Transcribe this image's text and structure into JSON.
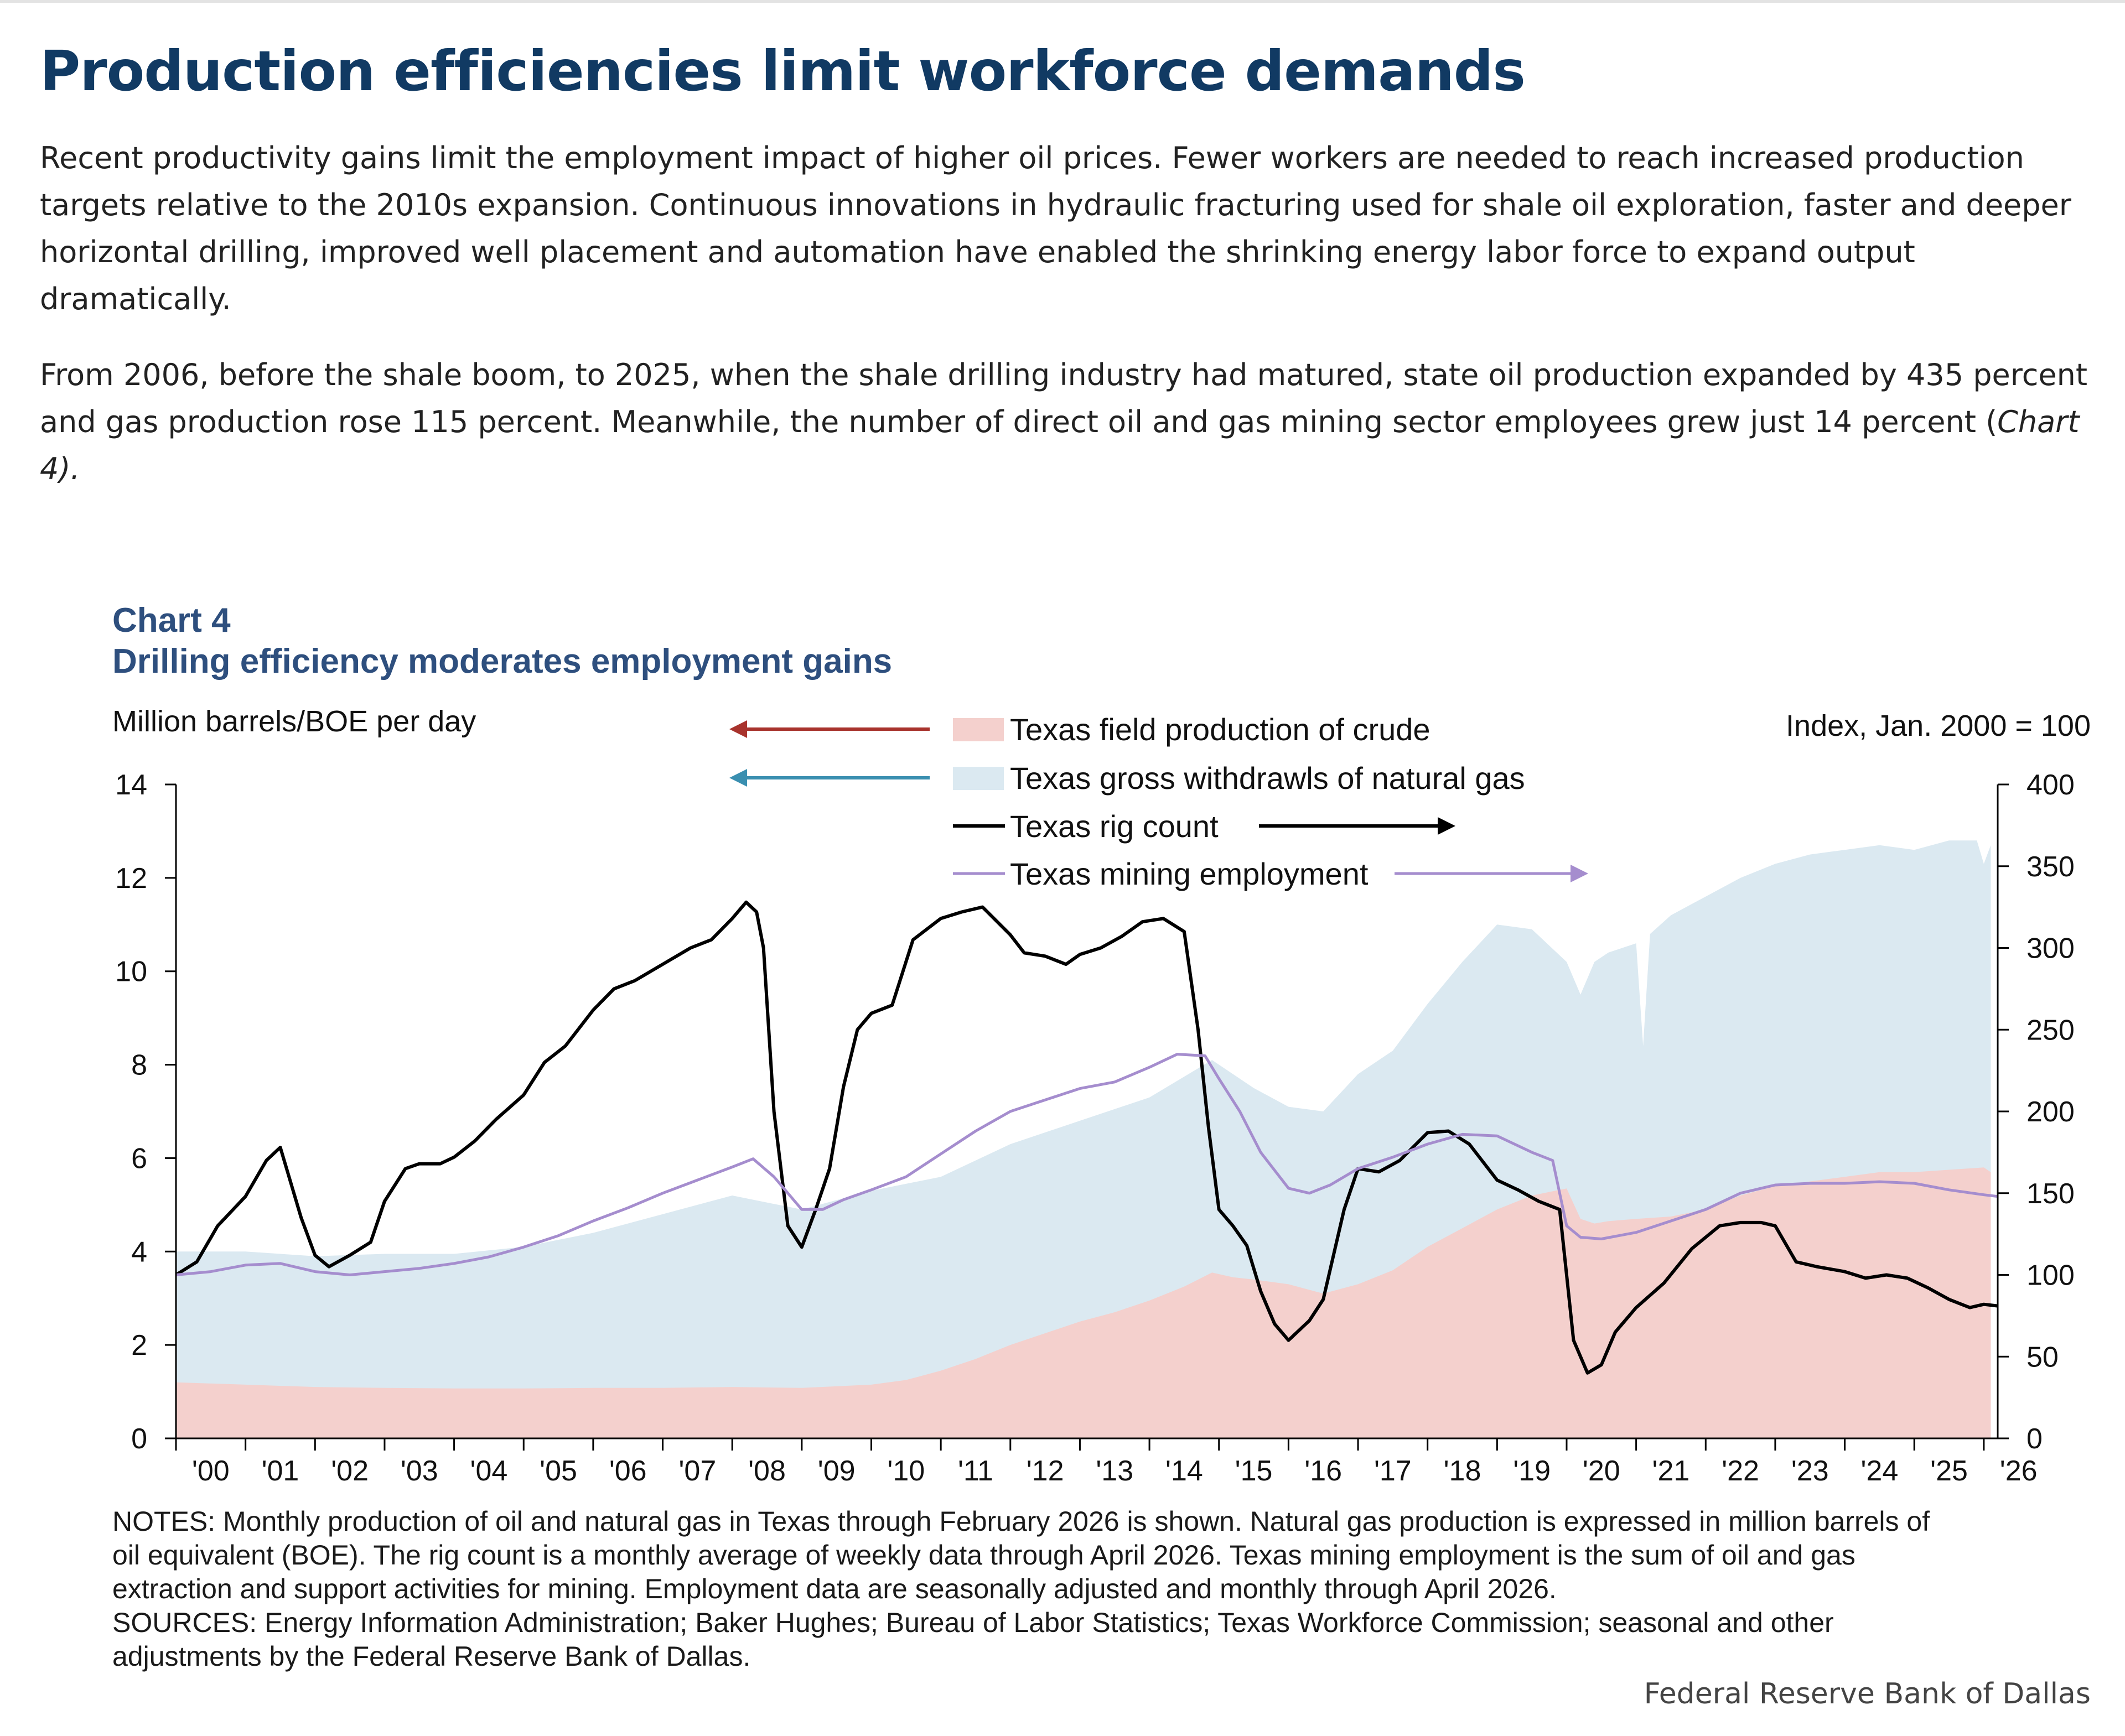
{
  "article": {
    "headline": "Production efficiencies limit workforce demands",
    "paragraph1_lines": [
      "Recent productivity gains limit the employment impact of higher oil prices. Fewer workers are needed to reach increased production",
      "targets relative to the 2010s expansion. Continuous innovations in hydraulic fracturing used for shale oil exploration, faster and deeper",
      "horizontal drilling, improved well placement and automation have enabled the shrinking energy labor force to expand output",
      "dramatically."
    ],
    "paragraph2_lines": [
      "From 2006, before the shale boom, to 2025, when the shale drilling industry had matured, state oil production expanded by 435 percent",
      "and gas production rose 115 percent. Meanwhile, the number of direct oil and gas mining sector employees grew just 14 percent (",
      "4)."
    ],
    "paragraph2_ref_italic": "Chart"
  },
  "chart_data": {
    "type": "area",
    "title": "Chart 4",
    "subtitle": "Drilling efficiency moderates employment gains",
    "ylabel_left": "Million barrels/BOE per day",
    "ylabel_right": "Index, Jan. 2000 = 100",
    "ylim_left": [
      0,
      14
    ],
    "ylim_right": [
      0,
      400
    ],
    "yticks_left": [
      "0",
      "2",
      "4",
      "6",
      "8",
      "10",
      "12",
      "14"
    ],
    "yticks_right": [
      "0",
      "50",
      "100",
      "150",
      "200",
      "250",
      "300",
      "350",
      "400"
    ],
    "xlim": [
      2000.0,
      2026.2
    ],
    "xticks": [
      "'00",
      "'01",
      "'02",
      "'03",
      "'04",
      "'05",
      "'06",
      "'07",
      "'08",
      "'09",
      "'10",
      "'11",
      "'12",
      "'13",
      "'14",
      "'15",
      "'16",
      "'17",
      "'18",
      "'19",
      "'20",
      "'21",
      "'22",
      "'23",
      "'24",
      "'25",
      "'26"
    ],
    "grid": false,
    "legend_position": "top-center",
    "series": [
      {
        "name": "Texas field production of crude",
        "axis": "left",
        "style": "area",
        "color": "#f4d0cd",
        "arrow_color": "#a8332d",
        "x": [
          2000.0,
          2001.0,
          2002.0,
          2003.0,
          2004.0,
          2005.0,
          2006.0,
          2007.0,
          2008.0,
          2009.0,
          2010.0,
          2010.5,
          2011.0,
          2011.5,
          2012.0,
          2012.5,
          2013.0,
          2013.5,
          2014.0,
          2014.5,
          2014.9,
          2015.2,
          2015.5,
          2016.0,
          2016.5,
          2017.0,
          2017.5,
          2018.0,
          2018.5,
          2019.0,
          2019.5,
          2020.0,
          2020.2,
          2020.4,
          2020.6,
          2021.0,
          2021.5,
          2022.0,
          2022.5,
          2023.0,
          2023.5,
          2024.0,
          2024.5,
          2025.0,
          2025.5,
          2026.0,
          2026.1
        ],
        "values": [
          1.2,
          1.15,
          1.1,
          1.08,
          1.07,
          1.07,
          1.08,
          1.08,
          1.1,
          1.08,
          1.15,
          1.25,
          1.45,
          1.7,
          2.0,
          2.25,
          2.5,
          2.7,
          2.95,
          3.25,
          3.55,
          3.45,
          3.4,
          3.3,
          3.1,
          3.3,
          3.6,
          4.1,
          4.5,
          4.9,
          5.2,
          5.35,
          4.7,
          4.6,
          4.65,
          4.7,
          4.75,
          4.9,
          5.2,
          5.4,
          5.5,
          5.6,
          5.7,
          5.7,
          5.75,
          5.8,
          5.7
        ]
      },
      {
        "name": "Texas gross withdrawls of natural gas",
        "axis": "left",
        "style": "area",
        "color": "#dbe9f1",
        "arrow_color": "#3a8fb0",
        "x": [
          2000.0,
          2001.0,
          2002.0,
          2003.0,
          2004.0,
          2005.0,
          2006.0,
          2007.0,
          2008.0,
          2009.0,
          2010.0,
          2011.0,
          2012.0,
          2013.0,
          2014.0,
          2014.9,
          2015.5,
          2016.0,
          2016.5,
          2017.0,
          2017.5,
          2018.0,
          2018.5,
          2019.0,
          2019.5,
          2020.0,
          2020.2,
          2020.4,
          2020.6,
          2021.0,
          2021.1,
          2021.2,
          2021.5,
          2022.0,
          2022.5,
          2023.0,
          2023.5,
          2024.0,
          2024.5,
          2025.0,
          2025.5,
          2025.9,
          2026.0,
          2026.1
        ],
        "values": [
          4.0,
          4.0,
          3.9,
          3.95,
          3.95,
          4.1,
          4.4,
          4.8,
          5.2,
          4.9,
          5.3,
          5.6,
          6.3,
          6.8,
          7.3,
          8.1,
          7.5,
          7.1,
          7.0,
          7.8,
          8.3,
          9.3,
          10.2,
          11.0,
          10.9,
          10.2,
          9.5,
          10.2,
          10.4,
          10.6,
          8.4,
          10.8,
          11.2,
          11.6,
          12.0,
          12.3,
          12.5,
          12.6,
          12.7,
          12.6,
          12.8,
          12.8,
          12.3,
          12.7
        ]
      },
      {
        "name": "Texas rig count",
        "axis": "right",
        "style": "line",
        "color": "#000000",
        "x": [
          2000.0,
          2000.3,
          2000.6,
          2001.0,
          2001.3,
          2001.5,
          2001.8,
          2002.0,
          2002.2,
          2002.5,
          2002.8,
          2003.0,
          2003.3,
          2003.5,
          2003.8,
          2004.0,
          2004.3,
          2004.6,
          2005.0,
          2005.3,
          2005.6,
          2006.0,
          2006.3,
          2006.6,
          2007.0,
          2007.4,
          2007.7,
          2008.0,
          2008.2,
          2008.35,
          2008.45,
          2008.6,
          2008.8,
          2009.0,
          2009.2,
          2009.4,
          2009.6,
          2009.8,
          2010.0,
          2010.3,
          2010.6,
          2011.0,
          2011.3,
          2011.6,
          2012.0,
          2012.2,
          2012.5,
          2012.8,
          2013.0,
          2013.3,
          2013.6,
          2013.9,
          2014.2,
          2014.5,
          2014.7,
          2014.85,
          2015.0,
          2015.2,
          2015.4,
          2015.6,
          2015.8,
          2016.0,
          2016.3,
          2016.5,
          2016.8,
          2017.0,
          2017.3,
          2017.6,
          2018.0,
          2018.3,
          2018.6,
          2019.0,
          2019.3,
          2019.6,
          2019.9,
          2020.1,
          2020.3,
          2020.5,
          2020.7,
          2021.0,
          2021.4,
          2021.8,
          2022.2,
          2022.5,
          2022.8,
          2023.0,
          2023.3,
          2023.6,
          2024.0,
          2024.3,
          2024.6,
          2024.9,
          2025.2,
          2025.5,
          2025.8,
          2026.0,
          2026.2
        ],
        "values": [
          100,
          108,
          130,
          148,
          170,
          178,
          135,
          112,
          105,
          112,
          120,
          145,
          165,
          168,
          168,
          172,
          182,
          195,
          210,
          230,
          240,
          262,
          275,
          280,
          290,
          300,
          305,
          318,
          328,
          322,
          300,
          200,
          130,
          117,
          140,
          165,
          215,
          250,
          260,
          265,
          305,
          318,
          322,
          325,
          308,
          297,
          295,
          290,
          296,
          300,
          307,
          316,
          318,
          310,
          250,
          190,
          140,
          130,
          118,
          90,
          70,
          60,
          72,
          85,
          140,
          165,
          163,
          170,
          187,
          188,
          180,
          158,
          152,
          145,
          140,
          60,
          40,
          45,
          65,
          80,
          95,
          116,
          130,
          132,
          132,
          130,
          108,
          105,
          102,
          98,
          100,
          98,
          92,
          85,
          80,
          82,
          81
        ]
      },
      {
        "name": "Texas mining employment",
        "axis": "right",
        "style": "line",
        "color": "#a58dce",
        "x": [
          2000.0,
          2000.5,
          2001.0,
          2001.5,
          2002.0,
          2002.5,
          2003.0,
          2003.5,
          2004.0,
          2004.5,
          2005.0,
          2005.5,
          2006.0,
          2006.5,
          2007.0,
          2007.5,
          2008.0,
          2008.3,
          2008.6,
          2009.0,
          2009.3,
          2009.6,
          2010.0,
          2010.5,
          2011.0,
          2011.5,
          2012.0,
          2012.5,
          2013.0,
          2013.5,
          2014.0,
          2014.4,
          2014.8,
          2015.0,
          2015.3,
          2015.6,
          2016.0,
          2016.3,
          2016.6,
          2017.0,
          2017.5,
          2018.0,
          2018.5,
          2019.0,
          2019.5,
          2019.8,
          2020.0,
          2020.2,
          2020.5,
          2021.0,
          2021.5,
          2022.0,
          2022.5,
          2023.0,
          2023.5,
          2024.0,
          2024.5,
          2025.0,
          2025.5,
          2026.0,
          2026.2
        ],
        "values": [
          100,
          102,
          106,
          107,
          102,
          100,
          102,
          104,
          107,
          111,
          117,
          124,
          133,
          141,
          150,
          158,
          166,
          171,
          160,
          140,
          140,
          146,
          152,
          160,
          174,
          188,
          200,
          207,
          214,
          218,
          227,
          235,
          234,
          220,
          200,
          175,
          153,
          150,
          155,
          165,
          172,
          180,
          186,
          185,
          175,
          170,
          130,
          123,
          122,
          126,
          133,
          140,
          150,
          155,
          156,
          156,
          157,
          156,
          152,
          149,
          148
        ]
      }
    ]
  },
  "notes": {
    "lines": [
      "NOTES: Monthly production of oil and natural gas in Texas through February 2026 is shown. Natural gas production is expressed in million barrels of",
      "oil equivalent (BOE). The rig count is a monthly average of weekly data through April 2026. Texas mining employment is the sum of oil and gas",
      "extraction and support activities for mining. Employment data are seasonally adjusted and monthly through April 2026.",
      "SOURCES: Energy Information Administration; Baker Hughes; Bureau of Labor Statistics; Texas Workforce Commission; seasonal and other",
      "adjustments by the Federal Reserve Bank of Dallas."
    ]
  },
  "credit": "Federal Reserve Bank of Dallas",
  "colors": {
    "headline": "#113a63",
    "chart_title": "#2e4f7e",
    "axis": "#000000"
  }
}
